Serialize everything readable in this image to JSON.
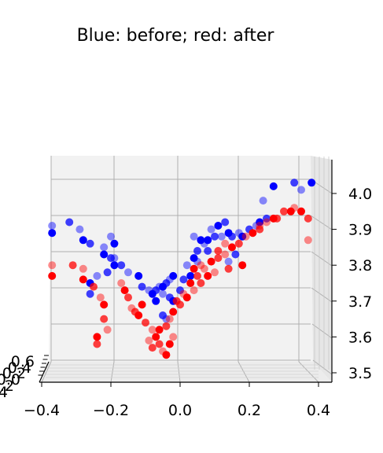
{
  "chart_data": {
    "type": "scatter",
    "projection": "3d",
    "title": "Blue: before; red: after",
    "x_ticks": [
      "−0.4",
      "−0.2",
      "0.0",
      "0.2",
      "0.4"
    ],
    "z_ticks": [
      "3.5",
      "3.6",
      "3.7",
      "3.8",
      "3.9",
      "4.0"
    ],
    "y_ticks": [
      "0.6",
      "0.4",
      "0.2",
      "0.0",
      "−0.2",
      "−0.4"
    ],
    "xlim": [
      -0.4,
      0.4
    ],
    "zlim": [
      3.5,
      4.05
    ],
    "grid": true,
    "series": [
      {
        "color": "#0000ff",
        "points": [
          [
            -0.37,
            3.91
          ],
          [
            -0.37,
            3.89
          ],
          [
            -0.32,
            3.92
          ],
          [
            -0.29,
            3.9
          ],
          [
            -0.28,
            3.87
          ],
          [
            -0.26,
            3.86
          ],
          [
            -0.22,
            3.85
          ],
          [
            -0.22,
            3.83
          ],
          [
            -0.2,
            3.82
          ],
          [
            -0.19,
            3.82
          ],
          [
            -0.19,
            3.8
          ],
          [
            -0.21,
            3.78
          ],
          [
            -0.24,
            3.77
          ],
          [
            -0.26,
            3.75
          ],
          [
            -0.26,
            3.72
          ],
          [
            -0.2,
            3.88
          ],
          [
            -0.19,
            3.86
          ],
          [
            -0.17,
            3.8
          ],
          [
            -0.15,
            3.78
          ],
          [
            -0.12,
            3.77
          ],
          [
            -0.11,
            3.74
          ],
          [
            -0.09,
            3.73
          ],
          [
            -0.08,
            3.72
          ],
          [
            -0.07,
            3.73
          ],
          [
            -0.06,
            3.74
          ],
          [
            -0.05,
            3.74
          ],
          [
            -0.04,
            3.75
          ],
          [
            -0.03,
            3.76
          ],
          [
            -0.02,
            3.77
          ],
          [
            -0.03,
            3.71
          ],
          [
            -0.05,
            3.72
          ],
          [
            -0.07,
            3.7
          ],
          [
            -0.05,
            3.66
          ],
          [
            -0.04,
            3.65
          ],
          [
            -0.02,
            3.7
          ],
          [
            0.01,
            3.76
          ],
          [
            0.02,
            3.8
          ],
          [
            0.04,
            3.82
          ],
          [
            0.05,
            3.84
          ],
          [
            0.07,
            3.86
          ],
          [
            0.08,
            3.87
          ],
          [
            0.1,
            3.88
          ],
          [
            0.12,
            3.88
          ],
          [
            0.14,
            3.89
          ],
          [
            0.15,
            3.88
          ],
          [
            0.17,
            3.89
          ],
          [
            0.18,
            3.88
          ],
          [
            0.2,
            3.9
          ],
          [
            0.22,
            3.91
          ],
          [
            0.23,
            3.92
          ],
          [
            0.25,
            3.93
          ],
          [
            0.09,
            3.9
          ],
          [
            0.11,
            3.91
          ],
          [
            0.13,
            3.92
          ],
          [
            0.04,
            3.88
          ],
          [
            0.06,
            3.87
          ],
          [
            0.08,
            3.84
          ],
          [
            0.05,
            3.81
          ],
          [
            0.03,
            3.77
          ],
          [
            0.0,
            3.73
          ],
          [
            0.24,
            3.98
          ],
          [
            0.27,
            4.02
          ],
          [
            0.33,
            4.03
          ],
          [
            0.35,
            4.01
          ],
          [
            0.38,
            4.03
          ],
          [
            0.16,
            3.83
          ],
          [
            0.14,
            3.81
          ]
        ]
      },
      {
        "color": "#ff0000",
        "points": [
          [
            -0.37,
            3.8
          ],
          [
            -0.37,
            3.77
          ],
          [
            -0.31,
            3.8
          ],
          [
            -0.28,
            3.79
          ],
          [
            -0.28,
            3.76
          ],
          [
            -0.25,
            3.74
          ],
          [
            -0.23,
            3.71
          ],
          [
            -0.22,
            3.69
          ],
          [
            -0.22,
            3.65
          ],
          [
            -0.21,
            3.62
          ],
          [
            -0.24,
            3.6
          ],
          [
            -0.24,
            3.58
          ],
          [
            -0.17,
            3.75
          ],
          [
            -0.16,
            3.73
          ],
          [
            -0.15,
            3.71
          ],
          [
            -0.14,
            3.68
          ],
          [
            -0.12,
            3.66
          ],
          [
            -0.1,
            3.64
          ],
          [
            -0.08,
            3.62
          ],
          [
            -0.07,
            3.6
          ],
          [
            -0.06,
            3.58
          ],
          [
            -0.05,
            3.56
          ],
          [
            -0.04,
            3.55
          ],
          [
            -0.08,
            3.57
          ],
          [
            -0.09,
            3.59
          ],
          [
            -0.06,
            3.62
          ],
          [
            -0.04,
            3.63
          ],
          [
            -0.03,
            3.65
          ],
          [
            -0.02,
            3.67
          ],
          [
            -0.01,
            3.7
          ],
          [
            0.01,
            3.72
          ],
          [
            0.03,
            3.75
          ],
          [
            0.05,
            3.77
          ],
          [
            0.07,
            3.79
          ],
          [
            0.09,
            3.81
          ],
          [
            0.11,
            3.82
          ],
          [
            0.13,
            3.83
          ],
          [
            0.15,
            3.85
          ],
          [
            0.17,
            3.86
          ],
          [
            0.19,
            3.88
          ],
          [
            0.21,
            3.89
          ],
          [
            0.23,
            3.9
          ],
          [
            0.25,
            3.92
          ],
          [
            0.27,
            3.93
          ],
          [
            0.3,
            3.95
          ],
          [
            0.33,
            3.96
          ],
          [
            0.35,
            3.95
          ],
          [
            0.37,
            3.93
          ],
          [
            0.37,
            3.87
          ],
          [
            0.32,
            3.95
          ],
          [
            0.28,
            3.93
          ],
          [
            0.23,
            3.91
          ],
          [
            0.18,
            3.8
          ],
          [
            0.14,
            3.79
          ],
          [
            0.1,
            3.78
          ],
          [
            0.08,
            3.77
          ],
          [
            0.06,
            3.75
          ],
          [
            0.04,
            3.73
          ],
          [
            0.02,
            3.71
          ],
          [
            0.0,
            3.69
          ],
          [
            0.06,
            3.8
          ],
          [
            0.04,
            3.79
          ],
          [
            0.11,
            3.84
          ],
          [
            0.13,
            3.86
          ],
          [
            -0.11,
            3.69
          ],
          [
            -0.13,
            3.67
          ],
          [
            -0.02,
            3.6
          ],
          [
            -0.03,
            3.58
          ]
        ]
      }
    ]
  }
}
